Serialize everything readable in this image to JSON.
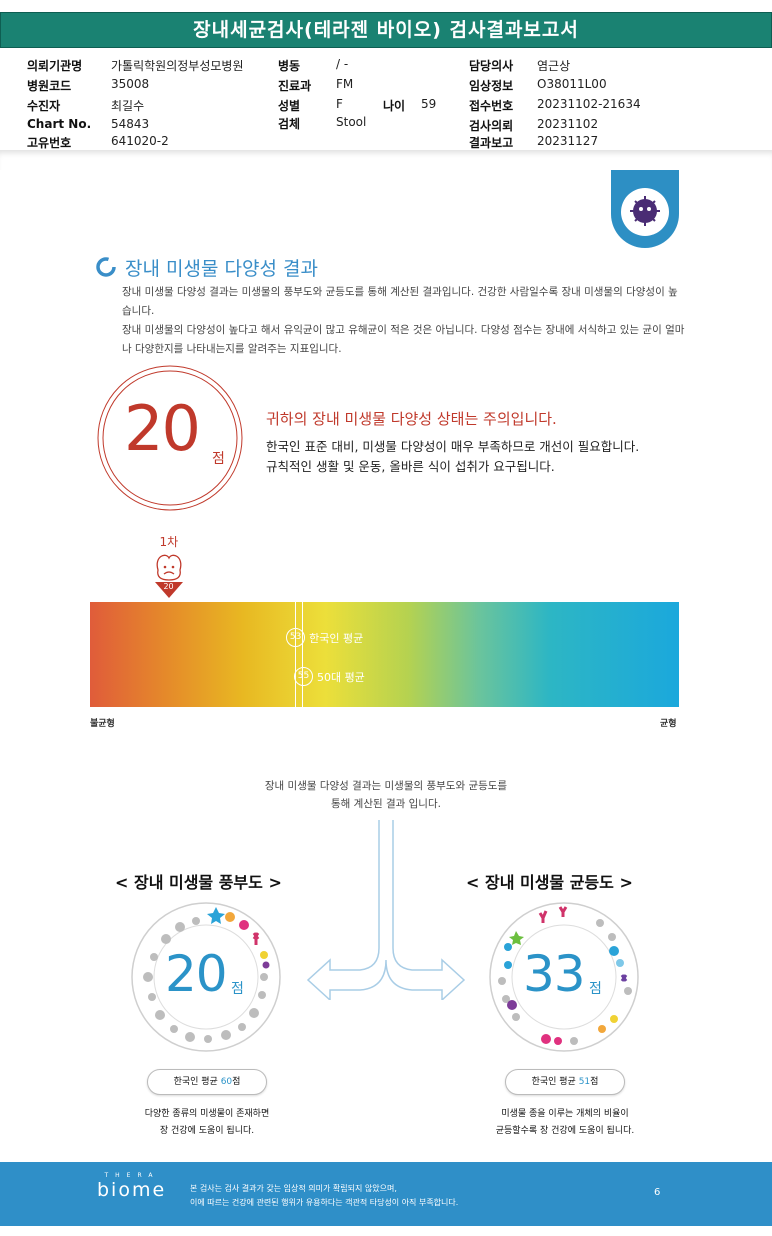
{
  "header": {
    "title": "장내세균검사(테라젠 바이오) 검사결과보고서",
    "fields": [
      {
        "label": "의뢰기관명",
        "value": "가톨릭학원의정부성모병원"
      },
      {
        "label": "병원코드",
        "value": "35008"
      },
      {
        "label": "수진자",
        "value": "최길수"
      },
      {
        "label": "Chart No.",
        "value": "54843"
      },
      {
        "label": "고유번호",
        "value": "641020-2"
      },
      {
        "label": "병동",
        "value": "/ -"
      },
      {
        "label": "진료과",
        "value": "FM"
      },
      {
        "label": "성별",
        "value": "F"
      },
      {
        "label": "나이",
        "value": "59"
      },
      {
        "label": "검체",
        "value": "Stool"
      },
      {
        "label": "담당의사",
        "value": "염근상"
      },
      {
        "label": "임상정보",
        "value": "O38011L00"
      },
      {
        "label": "접수번호",
        "value": "20231102-21634"
      },
      {
        "label": "검사의뢰",
        "value": "20231102"
      },
      {
        "label": "결과보고",
        "value": "20231127"
      }
    ]
  },
  "section": {
    "title": "장내 미생물 다양성 결과",
    "desc1": "장내 미생물 다양성 결과는 미생물의 풍부도와 균등도를 통해 계산된 결과입니다. 건강한 사람일수록 장내 미생물의 다양성이 높습니다.",
    "desc2": "장내 미생물의 다양성이 높다고 해서 유익균이 많고 유해균이 적은 것은 아닙니다. 다양성 점수는 장내에 서식하고 있는 균이 얼마나 다양한지를 나타내는지를 알려주는 지표입니다."
  },
  "score": {
    "value": "20",
    "unit": "점",
    "status": "귀하의 장내 미생물 다양성 상태는 주의입니다.",
    "line1": "한국인 표준 대비, 미생물 다양성이 매우 부족하므로 개선이 필요합니다.",
    "line2": "규칙적인 생활 및 운동, 올바른 식이 섭취가 요구됩니다."
  },
  "gauge": {
    "marker_label": "1차",
    "marker_value": "20",
    "marker_position": 20,
    "avg_korean": {
      "value": "53",
      "label": "한국인 평균",
      "position": 53
    },
    "avg_age": {
      "value": "55",
      "label": "50대 평균",
      "position": 55
    },
    "left_label": "불균형",
    "right_label": "균형"
  },
  "calc_note": {
    "line1": "장내 미생물 다양성 결과는 미생물의 풍부도와 균등도를",
    "line2": "통해 계산된 결과 입니다."
  },
  "richness": {
    "title": "< 장내 미생물 풍부도 >",
    "value": "20",
    "unit": "점",
    "avg_prefix": "한국인 평균 ",
    "avg_value": "60",
    "avg_suffix": "점",
    "caption1": "다양한 종류의 미생물이 존재하면",
    "caption2": "장 건강에 도움이 됩니다."
  },
  "evenness": {
    "title": "< 장내 미생물 균등도 >",
    "value": "33",
    "unit": "점",
    "avg_prefix": "한국인 평균 ",
    "avg_value": "51",
    "avg_suffix": "점",
    "caption1": "미생물 종을 이루는 개체의 비율이",
    "caption2": "균등할수록 장 건강에 도움이 됩니다."
  },
  "footer": {
    "brand_small": "THERA",
    "brand_large": "biome",
    "disclaimer1": "본 검사는 검사 결과가 갖는 임상적 의미가 확립되지 않았으며,",
    "disclaimer2": "이에 따르는 건강에 관련된 행위가 유용하다는 객관적 타당성이 아직 부족합니다.",
    "page": "6"
  },
  "colors": {
    "header_green": "#1a8272",
    "accent_blue": "#3a8ec8",
    "alert_red": "#c0392b",
    "footer_blue": "#2f8fc8"
  }
}
